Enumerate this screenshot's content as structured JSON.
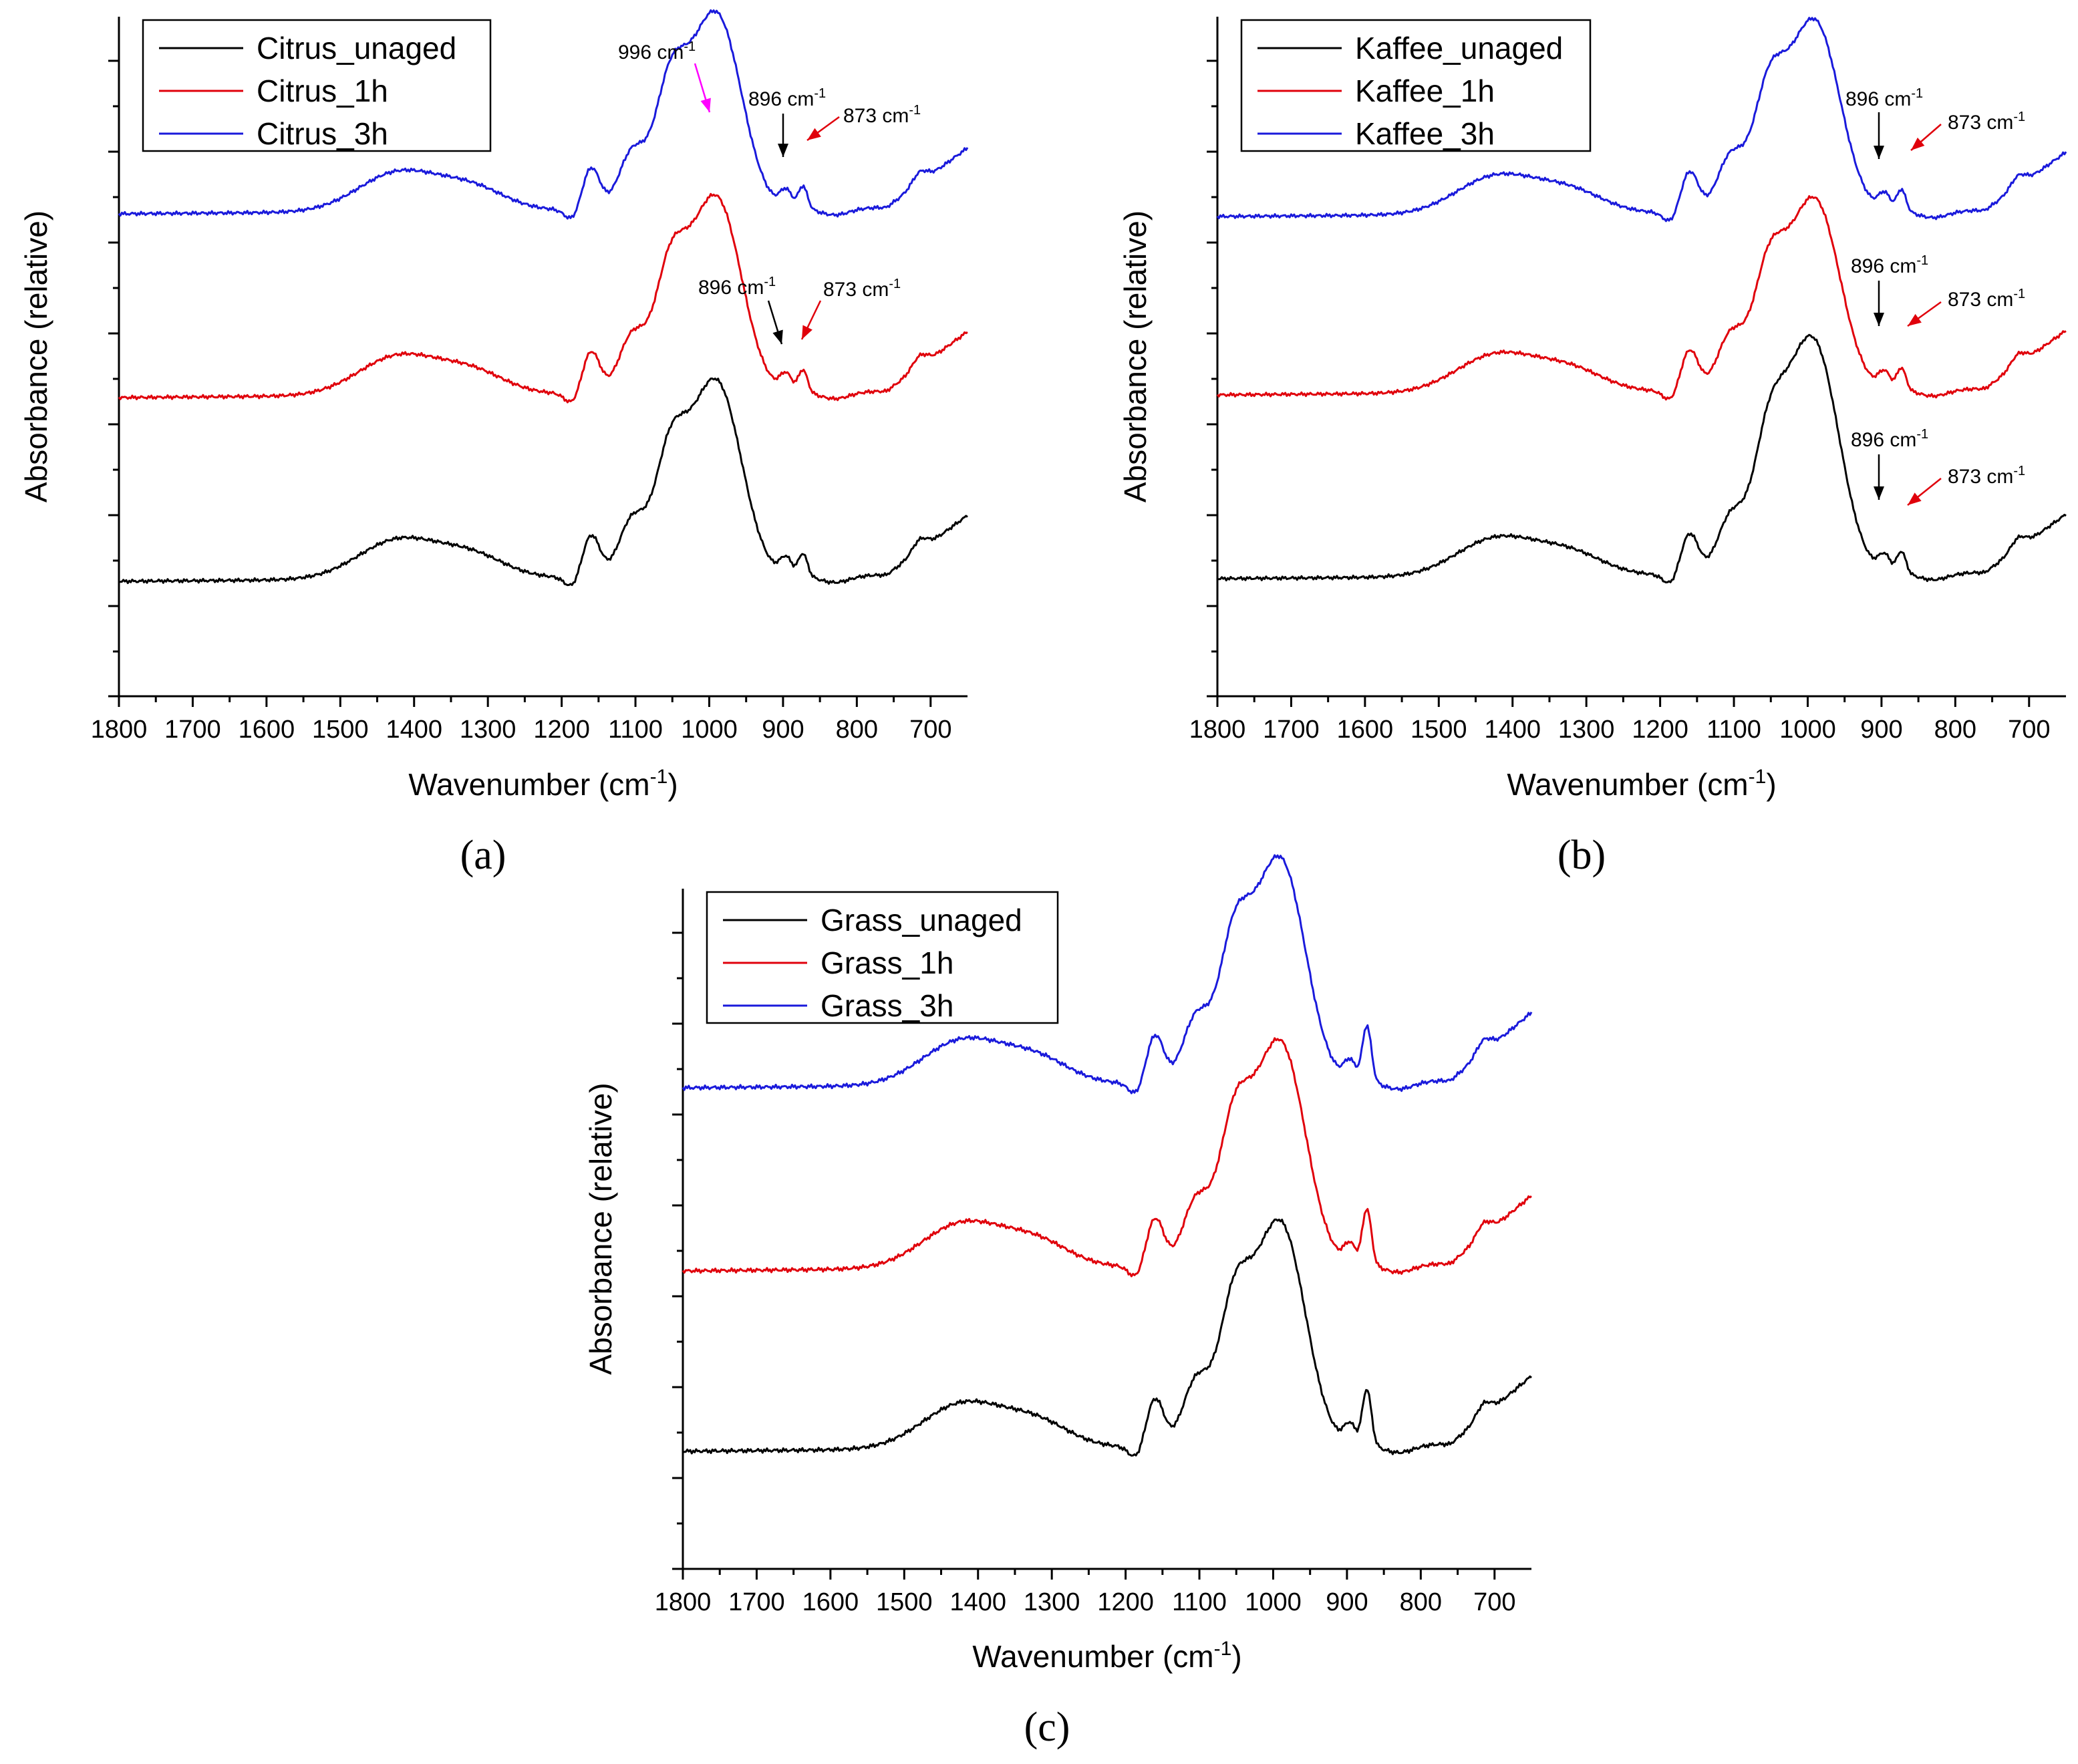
{
  "colors": {
    "unaged": "#000000",
    "h1": "#e0000b",
    "h3": "#1a1adb",
    "magenta": "#ff00ff"
  },
  "chart_data": [
    {
      "type": "line",
      "panel_label": "(a)",
      "panel_letter": "a",
      "xlabel": "Wavenumber (cm",
      "xlabel_sup": "-1",
      "xlabel_close": ")",
      "ylabel": "Absorbance (relative)",
      "xlim": [
        1800,
        650
      ],
      "x_ticks": [
        1800,
        1700,
        1600,
        1500,
        1400,
        1300,
        1200,
        1100,
        1000,
        900,
        800,
        700
      ],
      "series": [
        {
          "name": "Citrus_unaged",
          "color": "#000000",
          "offset": 0.0
        },
        {
          "name": "Citrus_1h",
          "color": "#e0000b",
          "offset": 1.0
        },
        {
          "name": "Citrus_3h",
          "color": "#1a1adb",
          "offset": 2.0
        }
      ],
      "annotations": [
        {
          "text": "996 cm",
          "sup": "-1",
          "x": 996,
          "series": 2,
          "color": "#ff00ff"
        },
        {
          "text": "896 cm",
          "sup": "-1",
          "x": 896,
          "series": 2,
          "color": "#000000"
        },
        {
          "text": "873 cm",
          "sup": "-1",
          "x": 873,
          "series": 2,
          "color": "#e0000b"
        },
        {
          "text": "896 cm",
          "sup": "-1",
          "x": 896,
          "series": 1,
          "color": "#000000"
        },
        {
          "text": "873 cm",
          "sup": "-1",
          "x": 873,
          "series": 1,
          "color": "#e0000b"
        }
      ]
    },
    {
      "type": "line",
      "panel_label": "(b)",
      "panel_letter": "b",
      "xlabel": "Wavenumber (cm",
      "xlabel_sup": "-1",
      "xlabel_close": ")",
      "ylabel": "Absorbance (relative)",
      "xlim": [
        1800,
        650
      ],
      "x_ticks": [
        1800,
        1700,
        1600,
        1500,
        1400,
        1300,
        1200,
        1100,
        1000,
        900,
        800,
        700
      ],
      "series": [
        {
          "name": "Kaffee_unaged",
          "color": "#000000",
          "offset": 0.0
        },
        {
          "name": "Kaffee_1h",
          "color": "#e0000b",
          "offset": 1.0
        },
        {
          "name": "Kaffee_3h",
          "color": "#1a1adb",
          "offset": 2.0
        }
      ],
      "annotations": [
        {
          "text": "896 cm",
          "sup": "-1",
          "x": 896,
          "series": 2,
          "color": "#000000"
        },
        {
          "text": "873 cm",
          "sup": "-1",
          "x": 873,
          "series": 2,
          "color": "#e0000b"
        },
        {
          "text": "896 cm",
          "sup": "-1",
          "x": 896,
          "series": 1,
          "color": "#000000"
        },
        {
          "text": "873 cm",
          "sup": "-1",
          "x": 873,
          "series": 1,
          "color": "#e0000b"
        },
        {
          "text": "896 cm",
          "sup": "-1",
          "x": 896,
          "series": 0,
          "color": "#000000"
        },
        {
          "text": "873 cm",
          "sup": "-1",
          "x": 873,
          "series": 0,
          "color": "#e0000b"
        }
      ]
    },
    {
      "type": "line",
      "panel_label": "(c)",
      "panel_letter": "c",
      "xlabel": "Wavenumber (cm",
      "xlabel_sup": "-1",
      "xlabel_close": ")",
      "ylabel": "Absorbance (relative)",
      "xlim": [
        1800,
        650
      ],
      "x_ticks": [
        1800,
        1700,
        1600,
        1500,
        1400,
        1300,
        1200,
        1100,
        1000,
        900,
        800,
        700
      ],
      "series": [
        {
          "name": "Grass_unaged",
          "color": "#000000",
          "offset": 0.0
        },
        {
          "name": "Grass_1h",
          "color": "#e0000b",
          "offset": 1.0
        },
        {
          "name": "Grass_3h",
          "color": "#1a1adb",
          "offset": 2.0
        }
      ],
      "annotations": []
    }
  ]
}
